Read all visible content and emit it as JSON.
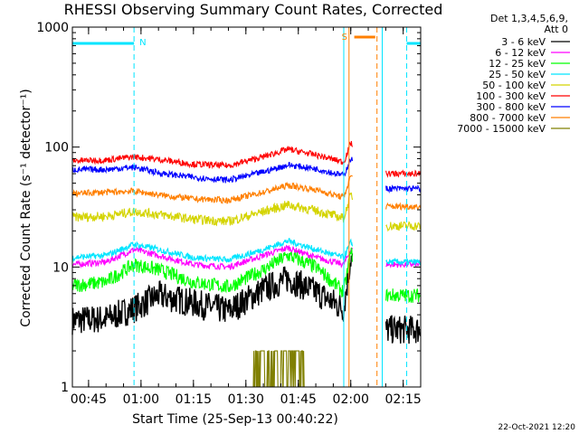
{
  "chart_data": {
    "type": "line",
    "title": "RHESSI Observing Summary Count Rates, Corrected",
    "xlabel": "Start Time (25-Sep-13 00:40:22)",
    "ylabel": "Corrected Count Rate (s⁻¹ detector⁻¹)",
    "y_scale": "log",
    "ylim": [
      1,
      1000
    ],
    "y_ticks": [
      1,
      10,
      100,
      1000
    ],
    "y_tick_labels": [
      "1",
      "10",
      "100",
      "1000"
    ],
    "xlim": [
      "00:40:22",
      "02:20:00"
    ],
    "x_ticks": [
      "00:45",
      "01:00",
      "01:15",
      "01:30",
      "01:45",
      "02:00",
      "02:15"
    ],
    "legend_header": [
      "Det 1,3,4,5,6,9,",
      "Att 0"
    ],
    "legend_placement": "right",
    "timestamp": "22-Oct-2021 12:20",
    "flags": {
      "N": {
        "label": "N",
        "color": "#00e5ff",
        "ranges": [
          [
            "00:40:22",
            "00:58:00"
          ],
          [
            "02:16:00",
            "02:20:00"
          ]
        ]
      },
      "S": {
        "label": "S",
        "color": "#ff7f00",
        "ranges": [
          [
            "02:01:00",
            "02:07:00"
          ]
        ]
      }
    },
    "vertical_markers": [
      {
        "t": "00:40:22",
        "color": "#00e5ff",
        "style": "solid"
      },
      {
        "t": "00:58:00",
        "color": "#00e5ff",
        "style": "dashed"
      },
      {
        "t": "01:58:00",
        "color": "#00e5ff",
        "style": "solid"
      },
      {
        "t": "01:59:30",
        "color": "#ff7f00",
        "style": "solid"
      },
      {
        "t": "02:07:30",
        "color": "#ff7f00",
        "style": "dashed"
      },
      {
        "t": "02:09:00",
        "color": "#00e5ff",
        "style": "solid"
      },
      {
        "t": "02:16:00",
        "color": "#00e5ff",
        "style": "dashed"
      }
    ],
    "data_gap": [
      "02:00:30",
      "02:10:00"
    ],
    "x": [
      "00:40:22",
      "00:50",
      "00:58",
      "01:05",
      "01:15",
      "01:25",
      "01:35",
      "01:42",
      "01:50",
      "01:58",
      "02:00",
      "02:10",
      "02:15",
      "02:17"
    ],
    "series": [
      {
        "name": "3 - 6 keV",
        "color": "#000000",
        "values": [
          3.6,
          3.7,
          4.5,
          5.8,
          5.0,
          4.3,
          6.5,
          8.0,
          6.2,
          4.5,
          12,
          3.0,
          3.0,
          3.0
        ]
      },
      {
        "name": "6 - 12 keV",
        "color": "#ff00ff",
        "values": [
          10.5,
          11,
          14,
          12.5,
          10.5,
          10,
          12.5,
          14.5,
          12,
          10.5,
          14,
          10.5,
          10.5,
          10.5
        ]
      },
      {
        "name": "12 - 25 keV",
        "color": "#00ff00",
        "values": [
          7,
          7.5,
          10.5,
          9.5,
          7.5,
          6.8,
          9.5,
          12.5,
          10,
          6.2,
          13,
          5.8,
          5.8,
          5.8
        ]
      },
      {
        "name": "25 - 50 keV",
        "color": "#00e5ff",
        "values": [
          12,
          12.5,
          15.5,
          14,
          12,
          11.5,
          14,
          16.5,
          14,
          12,
          16,
          11,
          11,
          11
        ]
      },
      {
        "name": "50 - 100 keV",
        "color": "#d4d400",
        "values": [
          26,
          26.5,
          29,
          27.5,
          25,
          24,
          29,
          33,
          29.5,
          25.5,
          40,
          22,
          22,
          22
        ]
      },
      {
        "name": "100 - 300 keV",
        "color": "#ff0000",
        "values": [
          77,
          78,
          83,
          79,
          72,
          70,
          83,
          96,
          86,
          75,
          108,
          60,
          60,
          60
        ]
      },
      {
        "name": "300 - 800 keV",
        "color": "#0000ff",
        "values": [
          65,
          65,
          68,
          61,
          56,
          53,
          62,
          71,
          66,
          58,
          80,
          45,
          45,
          45
        ]
      },
      {
        "name": "800 - 7000 keV",
        "color": "#ff7f00",
        "values": [
          41,
          42,
          43,
          40,
          37,
          36,
          42,
          48,
          44,
          38,
          58,
          32,
          32,
          32
        ]
      },
      {
        "name": "7000 - 15000 keV",
        "color": "#808000",
        "values": [
          1,
          1,
          1,
          1,
          1,
          1,
          2,
          2,
          1,
          1,
          1,
          1,
          1,
          1
        ]
      }
    ]
  }
}
